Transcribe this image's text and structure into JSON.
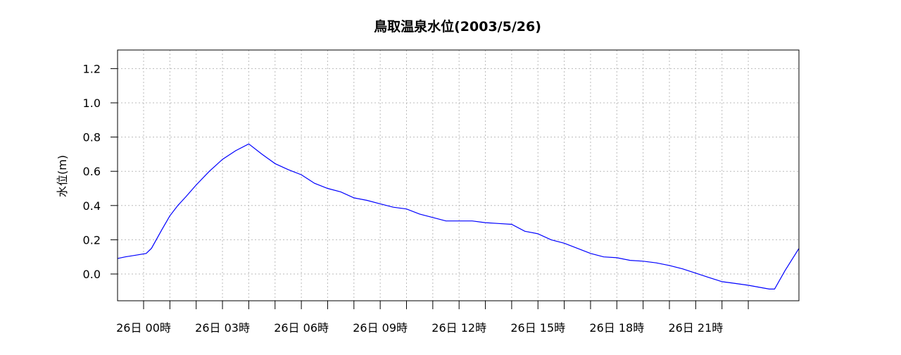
{
  "chart_data": {
    "type": "line",
    "title": "鳥取温泉水位(2003/5/26)",
    "xlabel": "",
    "ylabel": "水位(m)",
    "x_unit": "hours from 26日 00時",
    "xlim": [
      -1,
      24.93
    ],
    "ylim": [
      -0.156,
      1.309
    ],
    "grid": true,
    "line_color": "#0000ff",
    "yticks": [
      0.0,
      0.2,
      0.4,
      0.6,
      0.8,
      1.0,
      1.2
    ],
    "ytick_labels": [
      "0.0",
      "0.2",
      "0.4",
      "0.6",
      "0.8",
      "1.0",
      "1.2"
    ],
    "xticks": [
      0,
      1,
      2,
      3,
      4,
      5,
      6,
      7,
      8,
      9,
      10,
      11,
      12,
      13,
      14,
      15,
      16,
      17,
      18,
      19,
      20,
      21,
      22,
      23
    ],
    "xtick_label_positions": [
      0,
      3,
      6,
      9,
      12,
      15,
      18,
      21
    ],
    "xtick_labels": [
      "26日  00時",
      "26日  03時",
      "26日  06時",
      "26日  09時",
      "26日  12時",
      "26日  15時",
      "26日  18時",
      "26日  21時"
    ],
    "series": [
      {
        "name": "水位",
        "x": [
          -1,
          -0.7,
          -0.3,
          0.1,
          0.3,
          0.7,
          1.0,
          1.3,
          1.6,
          2.0,
          2.5,
          3.0,
          3.5,
          4.0,
          4.5,
          5.0,
          5.5,
          6.0,
          6.5,
          7.0,
          7.5,
          8.0,
          8.5,
          9.0,
          9.5,
          10.0,
          10.5,
          11.0,
          11.5,
          12.0,
          12.5,
          13.0,
          13.5,
          14.0,
          14.5,
          15.0,
          15.5,
          16.0,
          16.5,
          17.0,
          17.5,
          18.0,
          18.5,
          19.0,
          19.5,
          20.0,
          20.5,
          21.0,
          21.5,
          22.0,
          22.5,
          23.0,
          23.5,
          23.8,
          24.0,
          24.4,
          24.93
        ],
        "values": [
          0.09,
          0.1,
          0.11,
          0.12,
          0.15,
          0.26,
          0.34,
          0.4,
          0.45,
          0.52,
          0.6,
          0.67,
          0.72,
          0.76,
          0.7,
          0.645,
          0.61,
          0.58,
          0.53,
          0.5,
          0.48,
          0.445,
          0.43,
          0.41,
          0.39,
          0.38,
          0.35,
          0.33,
          0.31,
          0.31,
          0.31,
          0.3,
          0.295,
          0.29,
          0.25,
          0.235,
          0.2,
          0.18,
          0.15,
          0.12,
          0.1,
          0.095,
          0.08,
          0.075,
          0.065,
          0.05,
          0.03,
          0.005,
          -0.02,
          -0.045,
          -0.055,
          -0.066,
          -0.08,
          -0.088,
          -0.088,
          0.02,
          0.15
        ]
      }
    ]
  }
}
